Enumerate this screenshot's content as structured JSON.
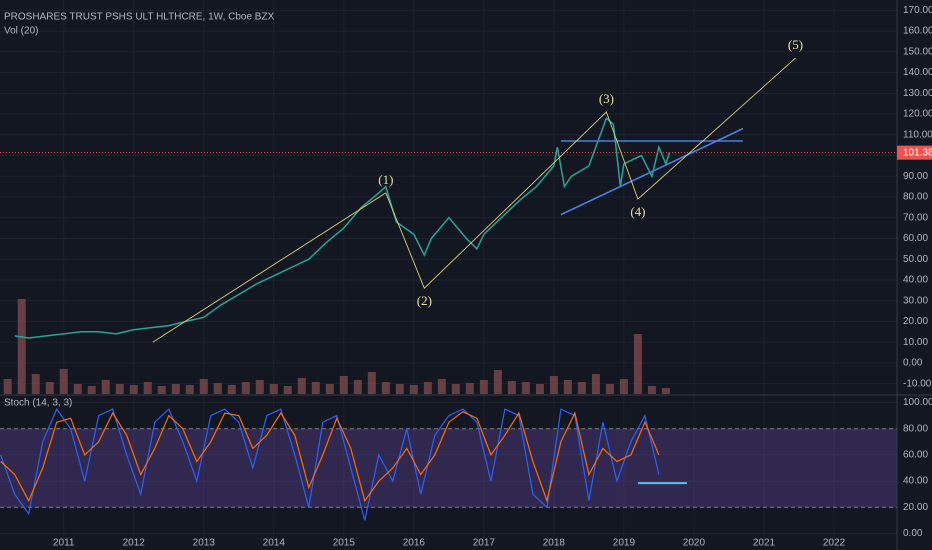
{
  "chart_data": {
    "type": "line",
    "title": "PROSHARES TRUST PSHS ULT HLTHCRE, 1W, Cboe BZX",
    "volume_label": "Vol (20)",
    "stoch_label": "Stoch (14, 3, 3)",
    "grid": true,
    "xlim": [
      2010.09,
      2022.9
    ],
    "xticks": [
      2011,
      2012,
      2013,
      2014,
      2015,
      2016,
      2017,
      2018,
      2019,
      2020,
      2021,
      2022
    ],
    "ylim": [
      -15,
      175
    ],
    "yticks": [
      {
        "value": -10,
        "label": "-10.00"
      },
      {
        "value": 0,
        "label": "0.00"
      },
      {
        "value": 10,
        "label": "10.00"
      },
      {
        "value": 20,
        "label": "20.00"
      },
      {
        "value": 30,
        "label": "30.00"
      },
      {
        "value": 40,
        "label": "40.00"
      },
      {
        "value": 50,
        "label": "50.00"
      },
      {
        "value": 60,
        "label": "60.00"
      },
      {
        "value": 70,
        "label": "70.00"
      },
      {
        "value": 80,
        "label": "80.00"
      },
      {
        "value": 90,
        "label": "90.00"
      },
      {
        "value": 100,
        "label": "100.00"
      },
      {
        "value": 110,
        "label": "110.00"
      },
      {
        "value": 120,
        "label": "120.00"
      },
      {
        "value": 130,
        "label": "130.00"
      },
      {
        "value": 140,
        "label": "140.00"
      },
      {
        "value": 150,
        "label": "150.00"
      },
      {
        "value": 160,
        "label": "160.00"
      },
      {
        "value": 170,
        "label": "170.00"
      }
    ],
    "price": {
      "color": "#26a69a",
      "x": [
        2010.3,
        2010.5,
        2010.75,
        2011,
        2011.25,
        2011.5,
        2011.75,
        2012,
        2012.25,
        2012.5,
        2012.75,
        2013,
        2013.25,
        2013.5,
        2013.75,
        2014,
        2014.25,
        2014.5,
        2014.75,
        2015,
        2015.25,
        2015.5,
        2015.6,
        2015.75,
        2016,
        2016.15,
        2016.25,
        2016.5,
        2016.75,
        2016.9,
        2017,
        2017.25,
        2017.5,
        2017.75,
        2018,
        2018.05,
        2018.15,
        2018.25,
        2018.5,
        2018.75,
        2018.85,
        2018.95,
        2019,
        2019.25,
        2019.4,
        2019.5,
        2019.6,
        2019.65
      ],
      "values": [
        13,
        12,
        13,
        14,
        15,
        15,
        14,
        16,
        17,
        18,
        20,
        22,
        28,
        33,
        38,
        42,
        46,
        50,
        58,
        65,
        75,
        82,
        85,
        68,
        62,
        52,
        60,
        70,
        60,
        55,
        62,
        70,
        78,
        85,
        95,
        104,
        85,
        90,
        95,
        118,
        115,
        85,
        96,
        100,
        90,
        104,
        96,
        101.38
      ]
    },
    "last_price": 101.38,
    "last_price_color": "#ef5350",
    "volume": {
      "color": "#7a4a4a",
      "ylim": [
        0,
        100
      ],
      "x": [
        2010.2,
        2010.4,
        2010.6,
        2010.8,
        2011.0,
        2011.2,
        2011.4,
        2011.6,
        2011.8,
        2012.0,
        2012.2,
        2012.4,
        2012.6,
        2012.8,
        2013.0,
        2013.2,
        2013.4,
        2013.6,
        2013.8,
        2014.0,
        2014.2,
        2014.4,
        2014.6,
        2014.8,
        2015.0,
        2015.2,
        2015.4,
        2015.6,
        2015.8,
        2016.0,
        2016.2,
        2016.4,
        2016.6,
        2016.8,
        2017.0,
        2017.2,
        2017.4,
        2017.6,
        2017.8,
        2018.0,
        2018.2,
        2018.4,
        2018.6,
        2018.8,
        2019.0,
        2019.2,
        2019.4,
        2019.6
      ],
      "values": [
        15,
        95,
        20,
        12,
        25,
        10,
        8,
        14,
        10,
        9,
        12,
        8,
        10,
        9,
        15,
        11,
        9,
        12,
        14,
        10,
        8,
        16,
        12,
        10,
        18,
        14,
        22,
        12,
        10,
        9,
        12,
        15,
        10,
        11,
        14,
        24,
        13,
        12,
        10,
        18,
        14,
        12,
        20,
        10,
        15,
        60,
        8,
        6
      ]
    },
    "waves": {
      "color": "#d8cf7a",
      "labels": [
        null,
        "(1)",
        "(2)",
        "(3)",
        "(4)",
        "(5)"
      ],
      "x": [
        2012.27,
        2015.6,
        2016.15,
        2018.75,
        2019.2,
        2021.45
      ],
      "values": [
        10,
        82,
        36,
        121,
        79,
        147
      ]
    },
    "trendlines": [
      {
        "color": "#4a7fe0",
        "x": [
          2018.1,
          2020.7
        ],
        "values": [
          107,
          107
        ]
      },
      {
        "color": "#4a7fe0",
        "x": [
          2018.1,
          2020.7
        ],
        "values": [
          71.5,
          113
        ]
      }
    ],
    "stoch": {
      "ylim": [
        -5,
        105
      ],
      "yticks": [
        {
          "value": 0,
          "label": "0.00"
        },
        {
          "value": 20,
          "label": "20.00"
        },
        {
          "value": 40,
          "label": "40.00"
        },
        {
          "value": 60,
          "label": "60.00"
        },
        {
          "value": 80,
          "label": "80.00"
        },
        {
          "value": 100,
          "label": "100.00"
        }
      ],
      "bands": [
        20,
        80
      ],
      "band_color": "#7e57c2",
      "x": [
        2010.1,
        2010.3,
        2010.5,
        2010.7,
        2010.9,
        2011.1,
        2011.3,
        2011.5,
        2011.7,
        2011.9,
        2012.1,
        2012.3,
        2012.5,
        2012.7,
        2012.9,
        2013.1,
        2013.3,
        2013.5,
        2013.7,
        2013.9,
        2014.1,
        2014.3,
        2014.5,
        2014.7,
        2014.9,
        2015.1,
        2015.3,
        2015.5,
        2015.7,
        2015.9,
        2016.1,
        2016.3,
        2016.5,
        2016.7,
        2016.9,
        2017.1,
        2017.3,
        2017.5,
        2017.7,
        2017.9,
        2018.1,
        2018.3,
        2018.5,
        2018.7,
        2018.9,
        2019.1,
        2019.3,
        2019.5
      ],
      "series": [
        {
          "color": "#2962ff",
          "values": [
            60,
            30,
            15,
            70,
            95,
            80,
            40,
            90,
            95,
            60,
            30,
            85,
            95,
            70,
            40,
            90,
            95,
            85,
            50,
            90,
            95,
            60,
            20,
            85,
            90,
            50,
            10,
            60,
            40,
            80,
            30,
            75,
            90,
            95,
            85,
            40,
            95,
            90,
            30,
            20,
            95,
            90,
            25,
            85,
            40,
            70,
            90,
            45
          ]
        },
        {
          "color": "#ff6d00",
          "values": [
            55,
            45,
            25,
            50,
            85,
            88,
            60,
            70,
            92,
            75,
            45,
            65,
            90,
            80,
            55,
            70,
            92,
            90,
            65,
            75,
            92,
            75,
            35,
            60,
            88,
            65,
            25,
            40,
            50,
            65,
            45,
            60,
            85,
            93,
            88,
            60,
            75,
            92,
            55,
            25,
            70,
            92,
            45,
            65,
            55,
            60,
            85,
            60
          ]
        }
      ],
      "trendline": {
        "color": "#4fc3f7",
        "x": [
          2019.2,
          2019.9
        ],
        "values": [
          38.5,
          38.5
        ]
      }
    }
  }
}
